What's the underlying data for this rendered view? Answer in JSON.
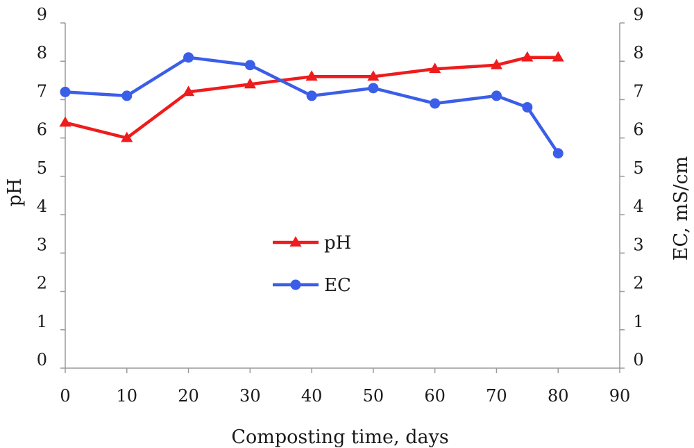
{
  "chart_data": {
    "type": "line",
    "x": [
      0,
      10,
      20,
      30,
      40,
      50,
      60,
      70,
      75,
      80
    ],
    "xlabel": "Composting time, days",
    "ylabel_left": "pH",
    "ylabel_right": "EC, mS/cm",
    "xlim": [
      0,
      90
    ],
    "ylim_left": [
      0,
      9
    ],
    "ylim_right": [
      0,
      9
    ],
    "x_ticks": [
      "0",
      "10",
      "20",
      "30",
      "40",
      "50",
      "60",
      "70",
      "80",
      "90"
    ],
    "y_ticks_left": [
      "0",
      "1",
      "2",
      "3",
      "4",
      "5",
      "6",
      "7",
      "8",
      "9"
    ],
    "y_ticks_right": [
      "0",
      "1",
      "2",
      "3",
      "4",
      "5",
      "6",
      "7",
      "8",
      "9"
    ],
    "grid": false,
    "legend_placement": "center",
    "series": [
      {
        "name": "pH",
        "axis": "left",
        "marker": "triangle",
        "color": "#ee1c1c",
        "values": [
          6.4,
          6.0,
          7.2,
          7.4,
          7.6,
          7.6,
          7.8,
          7.9,
          8.1,
          8.1
        ]
      },
      {
        "name": "EC",
        "axis": "right",
        "marker": "circle",
        "color": "#3b5ee8",
        "values": [
          7.2,
          7.1,
          8.1,
          7.9,
          7.1,
          7.3,
          6.9,
          7.1,
          6.8,
          5.6
        ]
      }
    ]
  }
}
